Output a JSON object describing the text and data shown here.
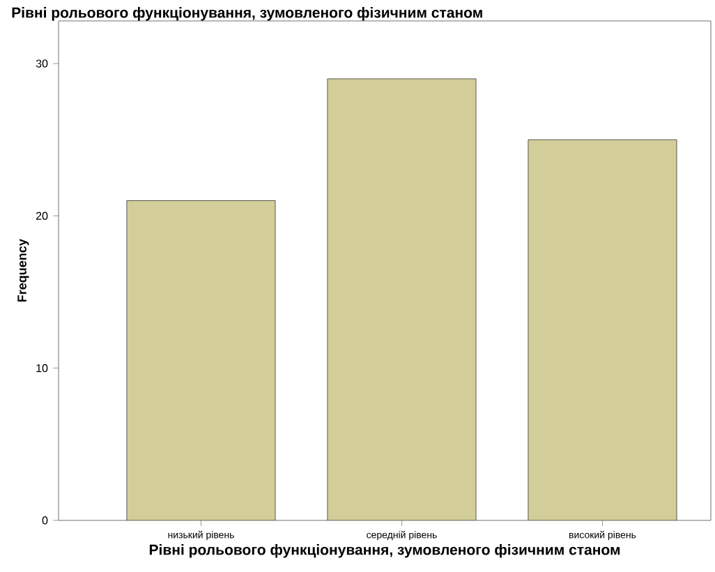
{
  "chart_data": {
    "type": "bar",
    "title": "Рівні рольового функціонування, зумовленого фізичним станом",
    "xlabel": "Рівні рольового функціонування, зумовленого фізичним станом",
    "ylabel": "Frequency",
    "categories": [
      "низький рівень",
      "середній рівень",
      "високий рівень"
    ],
    "values": [
      21,
      29,
      25
    ],
    "color": "#d3ce99",
    "ylim": [
      0,
      32.8
    ],
    "yticks": [
      0,
      10,
      20,
      30
    ]
  }
}
